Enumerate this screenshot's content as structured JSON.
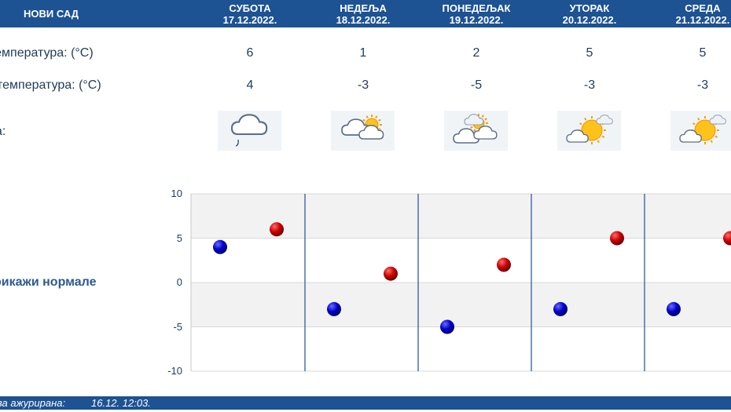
{
  "header": {
    "city": "НОВИ САД",
    "days": [
      {
        "name": "СУБОТА",
        "date": "17.12.2022."
      },
      {
        "name": "НЕДЕЉА",
        "date": "18.12.2022."
      },
      {
        "name": "ПОНЕДЕЉАК",
        "date": "19.12.2022."
      },
      {
        "name": "УТОРАК",
        "date": "20.12.2022."
      },
      {
        "name": "СРЕДА",
        "date": "21.12.2022."
      }
    ]
  },
  "rows": {
    "max_label": "температура: (°C)",
    "min_label": "температура: (°C)",
    "weather_label": "а:"
  },
  "forecast": {
    "max": [
      "6",
      "1",
      "2",
      "5",
      "5"
    ],
    "min": [
      "4",
      "-3",
      "-5",
      "-3",
      "-3"
    ],
    "icons": [
      "cloud-rain-icon",
      "sun-behind-clouds-icon",
      "partly-cloudy-icon",
      "mostly-sunny-icon",
      "mostly-sunny-icon"
    ]
  },
  "normals_link": "рикажи нормале",
  "footer": {
    "label": "ва ажурирана:",
    "value": "16.12. 12:03."
  },
  "colors": {
    "header_bg": "#1d5293",
    "max_marker": "#cc0000",
    "min_marker": "#0000cc",
    "band": "#f2f2f2",
    "day_separator": "#1d5293"
  },
  "chart_data": {
    "type": "scatter",
    "ylim": [
      -10,
      10
    ],
    "yticks": [
      "10",
      "5",
      "0",
      "-5",
      "-10"
    ],
    "grid": true,
    "series": [
      {
        "values": [
          4,
          -3,
          -5,
          -3,
          -3
        ]
      },
      {
        "values": [
          6,
          1,
          2,
          5,
          5
        ]
      }
    ]
  }
}
